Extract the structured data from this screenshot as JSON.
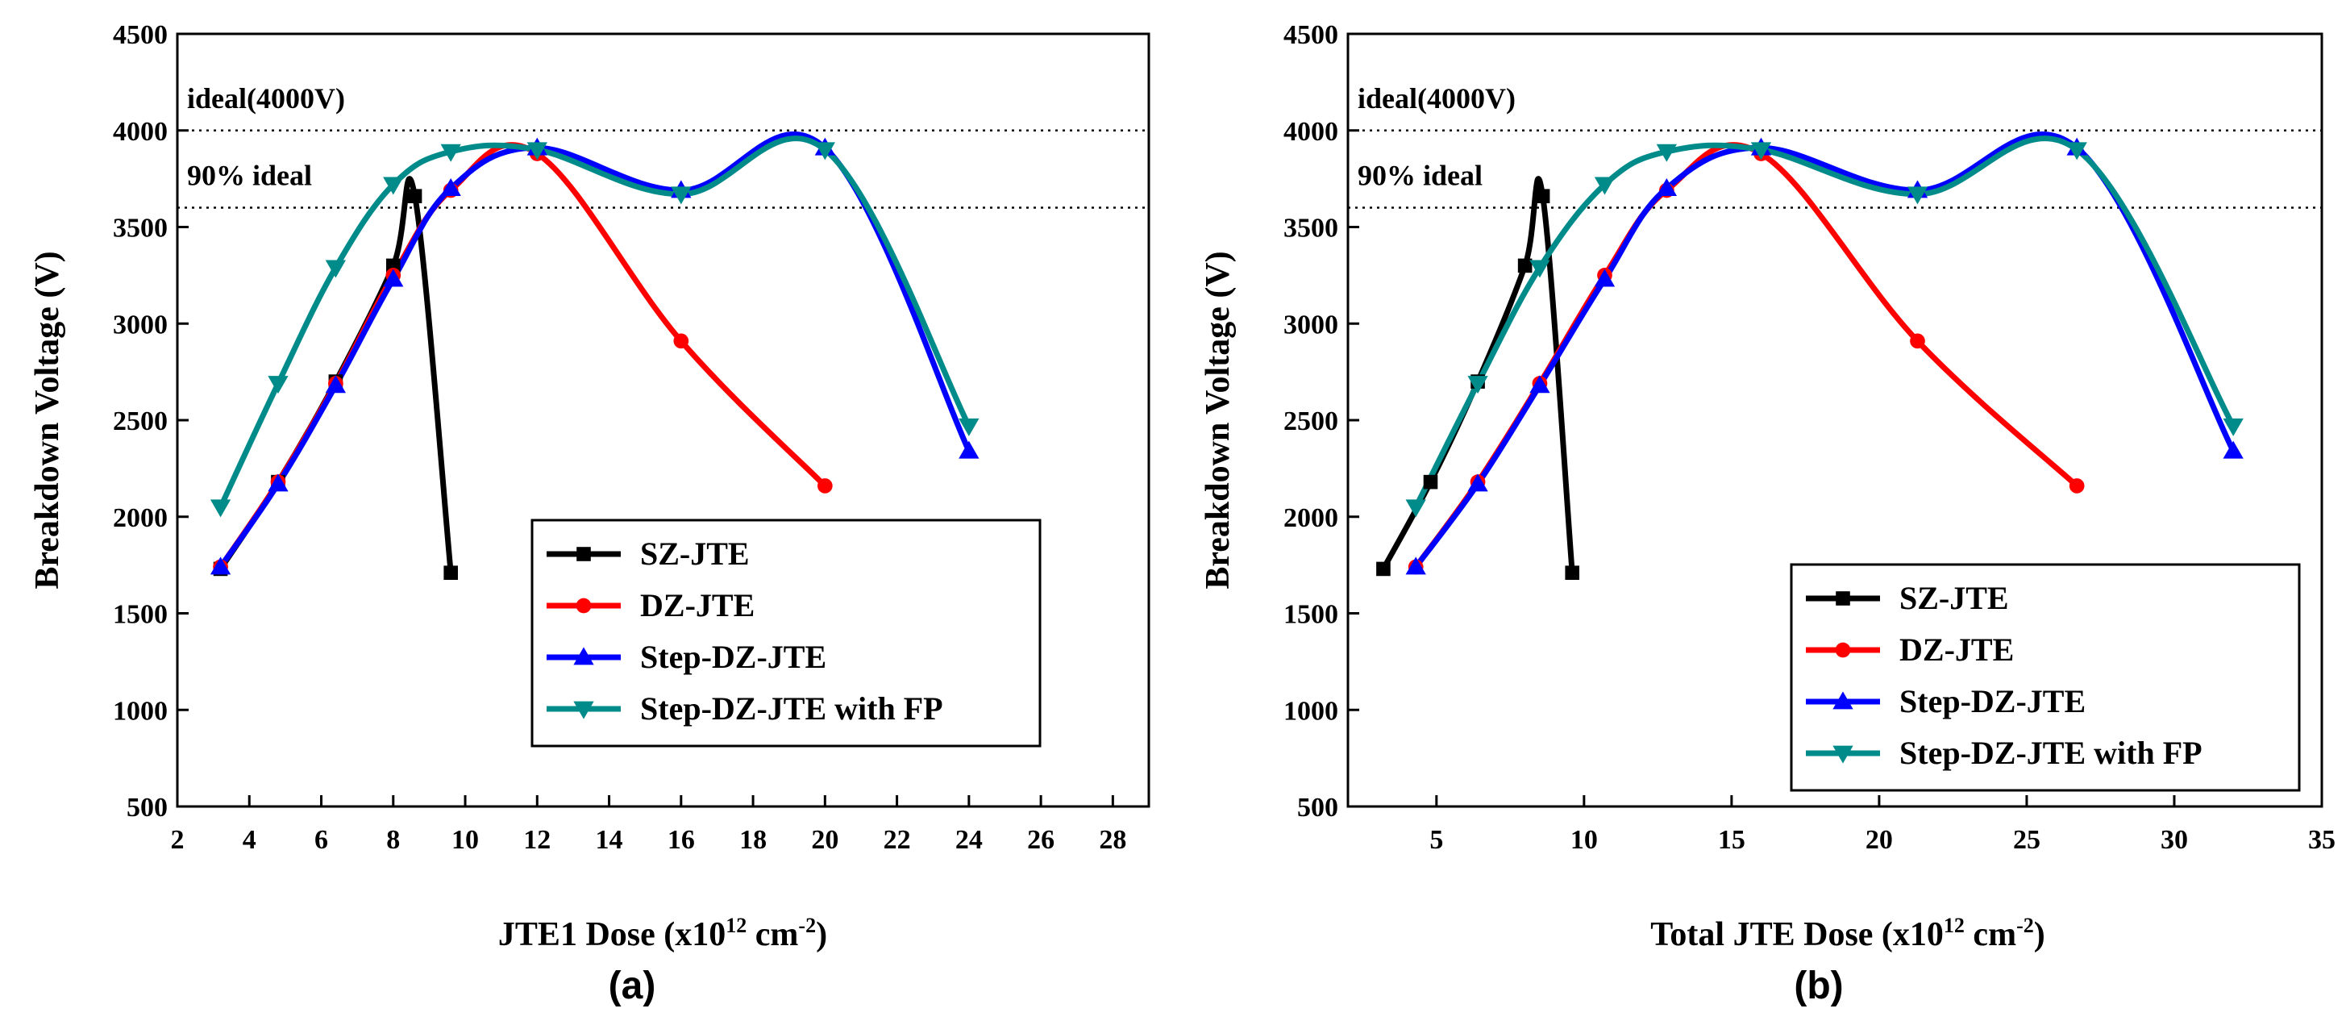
{
  "chart_data": [
    {
      "type": "line",
      "panel_label": "(a)",
      "xlabel": {
        "base": "JTE1 Dose (x10",
        "sup1": "12",
        "mid": " cm",
        "sup2": "-2",
        "end": ")"
      },
      "ylabel": "Breakdown Voltage (V)",
      "xlim": [
        2,
        29
      ],
      "ylim": [
        500,
        4500
      ],
      "xticks": [
        2,
        4,
        6,
        8,
        10,
        12,
        14,
        16,
        18,
        20,
        22,
        24,
        26,
        28
      ],
      "yticks": [
        500,
        1000,
        1500,
        2000,
        2500,
        3000,
        3500,
        4000,
        4500
      ],
      "legend_position": "center-right",
      "reference_lines": [
        {
          "y": 4000,
          "label": "ideal(4000V)"
        },
        {
          "y": 3600,
          "label": "90% ideal"
        }
      ],
      "series": [
        {
          "name": "SZ-JTE",
          "color": "#000000",
          "marker": "square",
          "x": [
            3.2,
            4.8,
            6.4,
            8.0,
            8.6,
            9.6
          ],
          "y": [
            1730,
            2180,
            2700,
            3300,
            3660,
            1710
          ]
        },
        {
          "name": "DZ-JTE",
          "color": "#ff0000",
          "marker": "circle",
          "x": [
            3.2,
            4.8,
            6.4,
            8.0,
            9.6,
            12.0,
            16.0,
            20.0
          ],
          "y": [
            1740,
            2180,
            2690,
            3250,
            3690,
            3880,
            2910,
            2160
          ]
        },
        {
          "name": "Step-DZ-JTE",
          "color": "#0000ff",
          "marker": "triangle-up",
          "x": [
            3.2,
            4.8,
            6.4,
            8.0,
            9.6,
            12.0,
            16.0,
            20.0,
            24.0
          ],
          "y": [
            1740,
            2170,
            2680,
            3230,
            3700,
            3910,
            3690,
            3910,
            2340
          ]
        },
        {
          "name": "Step-DZ-JTE with FP",
          "color": "#008b8b",
          "marker": "triangle-down",
          "x": [
            3.2,
            4.8,
            6.4,
            8.0,
            9.6,
            12.0,
            16.0,
            20.0,
            24.0
          ],
          "y": [
            2050,
            2690,
            3290,
            3720,
            3890,
            3900,
            3670,
            3900,
            2470
          ]
        }
      ]
    },
    {
      "type": "line",
      "panel_label": "(b)",
      "xlabel": {
        "base": "Total JTE Dose (x10",
        "sup1": "12",
        "mid": " cm",
        "sup2": "-2",
        "end": ")"
      },
      "ylabel": "Breakdown Voltage (V)",
      "xlim": [
        2,
        35
      ],
      "ylim": [
        500,
        4500
      ],
      "xticks": [
        5,
        10,
        15,
        20,
        25,
        30,
        35
      ],
      "yticks": [
        500,
        1000,
        1500,
        2000,
        2500,
        3000,
        3500,
        4000,
        4500
      ],
      "legend_position": "bottom-right",
      "reference_lines": [
        {
          "y": 4000,
          "label": "ideal(4000V)"
        },
        {
          "y": 3600,
          "label": "90% ideal"
        }
      ],
      "series": [
        {
          "name": "SZ-JTE",
          "color": "#000000",
          "marker": "square",
          "x": [
            3.2,
            4.8,
            6.4,
            8.0,
            8.6,
            9.6
          ],
          "y": [
            1730,
            2180,
            2700,
            3300,
            3660,
            1710
          ]
        },
        {
          "name": "DZ-JTE",
          "color": "#ff0000",
          "marker": "circle",
          "x": [
            4.3,
            6.4,
            8.5,
            10.7,
            12.8,
            16.0,
            21.3,
            26.7
          ],
          "y": [
            1740,
            2180,
            2690,
            3250,
            3690,
            3880,
            2910,
            2160
          ]
        },
        {
          "name": "Step-DZ-JTE",
          "color": "#0000ff",
          "marker": "triangle-up",
          "x": [
            4.3,
            6.4,
            8.5,
            10.7,
            12.8,
            16.0,
            21.3,
            26.7,
            32.0
          ],
          "y": [
            1740,
            2170,
            2680,
            3230,
            3700,
            3910,
            3690,
            3910,
            2340
          ]
        },
        {
          "name": "Step-DZ-JTE with FP",
          "color": "#008b8b",
          "marker": "triangle-down",
          "x": [
            4.3,
            6.4,
            8.5,
            10.7,
            12.8,
            16.0,
            21.3,
            26.7,
            32.0
          ],
          "y": [
            2050,
            2690,
            3290,
            3720,
            3890,
            3900,
            3670,
            3900,
            2470
          ]
        }
      ]
    }
  ]
}
